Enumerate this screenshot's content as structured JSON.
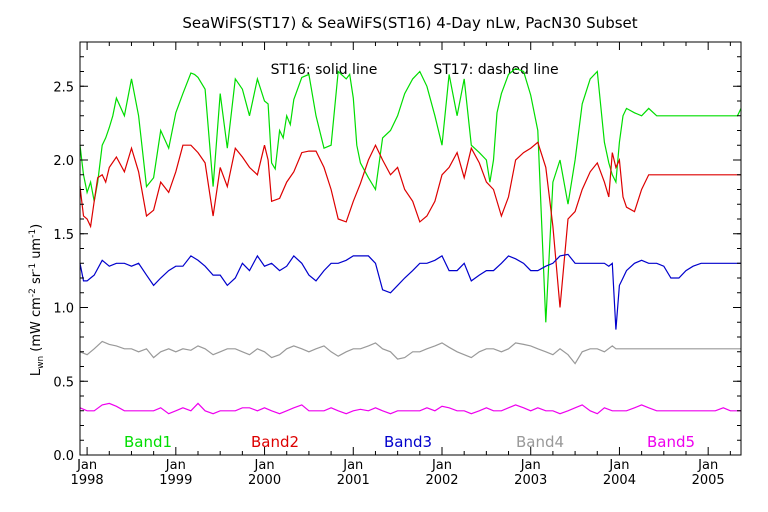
{
  "chart_data": {
    "type": "line",
    "title": "SeaWiFS(ST17) & SeaWiFS(ST16) 4-Day nLw, PacN30 Subset",
    "annotation_left": "ST16: solid line",
    "annotation_right": "ST17: dashed line",
    "ylabel_main": "L",
    "ylabel_sub": "wn",
    "ylabel_units": "(mW cm",
    "ylabel_exp1": "-2",
    "ylabel_mid": " sr",
    "ylabel_exp2": "-1",
    "ylabel_mid2": " um",
    "ylabel_exp3": "-1",
    "ylabel_end": ")",
    "xlabel": "",
    "ylim": [
      0.0,
      2.8
    ],
    "xlim": [
      1997.92,
      2005.37
    ],
    "y_ticks": [
      "0.0",
      "0.5",
      "1.0",
      "1.5",
      "2.0",
      "2.5"
    ],
    "x_ticks": [
      {
        "month": "Jan",
        "year": "1998",
        "x": 1998.0
      },
      {
        "month": "Jan",
        "year": "1999",
        "x": 1999.0
      },
      {
        "month": "Jan",
        "year": "2000",
        "x": 2000.0
      },
      {
        "month": "Jan",
        "year": "2001",
        "x": 2001.0
      },
      {
        "month": "Jan",
        "year": "2002",
        "x": 2002.0
      },
      {
        "month": "Jan",
        "year": "2003",
        "x": 2003.0
      },
      {
        "month": "Jan",
        "year": "2004",
        "x": 2004.0
      },
      {
        "month": "Jan",
        "year": "2005",
        "x": 2005.0
      }
    ],
    "grid": false,
    "legend_position": "bottom",
    "series": [
      {
        "name": "Band1",
        "color": "#00dd00",
        "x": [
          1997.92,
          1997.96,
          1998.0,
          1998.04,
          1998.08,
          1998.12,
          1998.17,
          1998.21,
          1998.25,
          1998.29,
          1998.33,
          1998.42,
          1998.5,
          1998.58,
          1998.67,
          1998.75,
          1998.83,
          1998.92,
          1999.0,
          1999.08,
          1999.17,
          1999.21,
          1999.25,
          1999.33,
          1999.42,
          1999.5,
          1999.58,
          1999.67,
          1999.75,
          1999.83,
          1999.92,
          2000.0,
          2000.04,
          2000.08,
          2000.12,
          2000.17,
          2000.21,
          2000.25,
          2000.29,
          2000.33,
          2000.42,
          2000.5,
          2000.58,
          2000.67,
          2000.75,
          2000.83,
          2000.92,
          2000.96,
          2001.0,
          2001.04,
          2001.08,
          2001.17,
          2001.25,
          2001.33,
          2001.42,
          2001.5,
          2001.58,
          2001.67,
          2001.75,
          2001.83,
          2001.92,
          2002.0,
          2002.08,
          2002.17,
          2002.25,
          2002.33,
          2002.42,
          2002.5,
          2002.54,
          2002.58,
          2002.62,
          2002.67,
          2002.75,
          2002.83,
          2002.92,
          2003.0,
          2003.08,
          2003.17,
          2003.25,
          2003.33,
          2003.42,
          2003.5,
          2003.58,
          2003.67,
          2003.75,
          2003.83,
          2003.88,
          2003.92,
          2003.96,
          2004.0,
          2004.04,
          2004.08,
          2004.17,
          2004.25,
          2004.33,
          2004.42,
          2004.5,
          2004.58,
          2004.67,
          2004.75,
          2004.83,
          2004.92,
          2005.0,
          2005.08,
          2005.17,
          2005.25,
          2005.33,
          2005.37
        ],
        "y": [
          2.1,
          1.9,
          1.78,
          1.85,
          1.72,
          1.85,
          2.1,
          2.15,
          2.22,
          2.3,
          2.42,
          2.3,
          2.55,
          2.3,
          1.82,
          1.88,
          2.2,
          2.08,
          2.32,
          2.45,
          2.59,
          2.58,
          2.56,
          2.48,
          1.82,
          2.45,
          2.08,
          2.55,
          2.48,
          2.3,
          2.55,
          2.4,
          2.38,
          1.98,
          1.94,
          2.2,
          2.15,
          2.3,
          2.24,
          2.41,
          2.56,
          2.58,
          2.3,
          2.08,
          2.1,
          2.6,
          2.55,
          2.58,
          2.42,
          2.1,
          1.98,
          1.88,
          1.8,
          2.15,
          2.2,
          2.3,
          2.45,
          2.55,
          2.6,
          2.5,
          2.3,
          2.1,
          2.58,
          2.3,
          2.55,
          2.1,
          2.05,
          2.0,
          1.85,
          2.0,
          2.32,
          2.45,
          2.58,
          2.62,
          2.6,
          2.44,
          2.2,
          0.9,
          1.85,
          2.0,
          1.7,
          2.0,
          2.38,
          2.55,
          2.6,
          2.12,
          1.98,
          1.9,
          1.85,
          2.12,
          2.3,
          2.35,
          2.32,
          2.3,
          2.35,
          2.3,
          2.3,
          2.3,
          2.3,
          2.3,
          2.3,
          2.3,
          2.3,
          2.3,
          2.3,
          2.3,
          2.3,
          2.35
        ]
      },
      {
        "name": "Band2",
        "color": "#dd0000",
        "x": [
          1997.92,
          1997.96,
          1998.0,
          1998.04,
          1998.08,
          1998.12,
          1998.17,
          1998.21,
          1998.25,
          1998.33,
          1998.42,
          1998.5,
          1998.58,
          1998.67,
          1998.75,
          1998.83,
          1998.92,
          1999.0,
          1999.08,
          1999.17,
          1999.25,
          1999.33,
          1999.42,
          1999.5,
          1999.58,
          1999.67,
          1999.75,
          1999.83,
          1999.92,
          2000.0,
          2000.04,
          2000.08,
          2000.17,
          2000.25,
          2000.33,
          2000.42,
          2000.5,
          2000.58,
          2000.67,
          2000.75,
          2000.83,
          2000.92,
          2001.0,
          2001.08,
          2001.17,
          2001.25,
          2001.33,
          2001.42,
          2001.5,
          2001.58,
          2001.67,
          2001.75,
          2001.83,
          2001.92,
          2002.0,
          2002.08,
          2002.17,
          2002.25,
          2002.33,
          2002.42,
          2002.5,
          2002.58,
          2002.67,
          2002.75,
          2002.83,
          2002.92,
          2003.0,
          2003.08,
          2003.17,
          2003.25,
          2003.33,
          2003.42,
          2003.5,
          2003.58,
          2003.67,
          2003.75,
          2003.83,
          2003.88,
          2003.92,
          2003.96,
          2004.0,
          2004.04,
          2004.08,
          2004.17,
          2004.25,
          2004.33,
          2004.42,
          2004.5,
          2004.58,
          2004.67,
          2004.75,
          2004.83,
          2004.92,
          2005.0,
          2005.08,
          2005.17,
          2005.25,
          2005.33,
          2005.37
        ],
        "y": [
          1.82,
          1.62,
          1.6,
          1.55,
          1.72,
          1.88,
          1.9,
          1.85,
          1.95,
          2.02,
          1.92,
          2.08,
          1.92,
          1.62,
          1.66,
          1.85,
          1.78,
          1.92,
          2.1,
          2.1,
          2.05,
          1.98,
          1.62,
          1.95,
          1.82,
          2.08,
          2.02,
          1.95,
          1.9,
          2.1,
          2.0,
          1.72,
          1.74,
          1.85,
          1.92,
          2.05,
          2.06,
          2.06,
          1.95,
          1.8,
          1.6,
          1.58,
          1.72,
          1.84,
          2.0,
          2.1,
          2.0,
          1.9,
          1.95,
          1.8,
          1.72,
          1.58,
          1.62,
          1.72,
          1.9,
          1.95,
          2.05,
          1.88,
          2.08,
          1.98,
          1.85,
          1.8,
          1.62,
          1.75,
          2.0,
          2.05,
          2.08,
          2.12,
          1.95,
          1.55,
          1.0,
          1.6,
          1.65,
          1.8,
          1.92,
          1.98,
          1.85,
          1.75,
          2.05,
          1.95,
          2.0,
          1.75,
          1.68,
          1.65,
          1.8,
          1.9,
          1.9,
          1.9,
          1.9,
          1.9,
          1.9,
          1.9,
          1.9,
          1.9,
          1.9,
          1.9,
          1.9,
          1.9,
          1.9
        ]
      },
      {
        "name": "Band3",
        "color": "#0000cc",
        "x": [
          1997.92,
          1997.96,
          1998.0,
          1998.04,
          1998.08,
          1998.17,
          1998.25,
          1998.33,
          1998.42,
          1998.5,
          1998.58,
          1998.67,
          1998.75,
          1998.83,
          1998.92,
          1999.0,
          1999.08,
          1999.17,
          1999.25,
          1999.33,
          1999.42,
          1999.5,
          1999.58,
          1999.67,
          1999.75,
          1999.83,
          1999.92,
          2000.0,
          2000.08,
          2000.17,
          2000.25,
          2000.33,
          2000.42,
          2000.5,
          2000.58,
          2000.67,
          2000.75,
          2000.83,
          2000.92,
          2001.0,
          2001.08,
          2001.17,
          2001.25,
          2001.33,
          2001.42,
          2001.5,
          2001.58,
          2001.67,
          2001.75,
          2001.83,
          2001.92,
          2002.0,
          2002.08,
          2002.17,
          2002.25,
          2002.33,
          2002.42,
          2002.5,
          2002.58,
          2002.67,
          2002.75,
          2002.83,
          2002.92,
          2003.0,
          2003.08,
          2003.17,
          2003.25,
          2003.33,
          2003.42,
          2003.5,
          2003.58,
          2003.67,
          2003.75,
          2003.83,
          2003.88,
          2003.92,
          2003.96,
          2004.0,
          2004.04,
          2004.08,
          2004.17,
          2004.25,
          2004.33,
          2004.42,
          2004.5,
          2004.58,
          2004.67,
          2004.75,
          2004.83,
          2004.92,
          2005.0,
          2005.08,
          2005.17,
          2005.25,
          2005.33,
          2005.37
        ],
        "y": [
          1.3,
          1.18,
          1.18,
          1.2,
          1.22,
          1.32,
          1.28,
          1.3,
          1.3,
          1.28,
          1.3,
          1.22,
          1.15,
          1.2,
          1.25,
          1.28,
          1.28,
          1.35,
          1.32,
          1.28,
          1.22,
          1.22,
          1.15,
          1.2,
          1.3,
          1.25,
          1.35,
          1.28,
          1.3,
          1.25,
          1.28,
          1.35,
          1.3,
          1.22,
          1.18,
          1.25,
          1.3,
          1.3,
          1.32,
          1.35,
          1.35,
          1.35,
          1.3,
          1.12,
          1.1,
          1.15,
          1.2,
          1.25,
          1.3,
          1.3,
          1.32,
          1.35,
          1.25,
          1.25,
          1.3,
          1.18,
          1.22,
          1.25,
          1.25,
          1.3,
          1.35,
          1.33,
          1.3,
          1.25,
          1.25,
          1.28,
          1.3,
          1.35,
          1.36,
          1.3,
          1.3,
          1.3,
          1.3,
          1.3,
          1.28,
          1.3,
          0.85,
          1.15,
          1.2,
          1.25,
          1.3,
          1.32,
          1.3,
          1.3,
          1.28,
          1.2,
          1.2,
          1.25,
          1.28,
          1.3,
          1.3,
          1.3,
          1.3,
          1.3,
          1.3,
          1.3
        ]
      },
      {
        "name": "Band4",
        "color": "#999999",
        "x": [
          1997.92,
          1998.0,
          1998.08,
          1998.17,
          1998.25,
          1998.33,
          1998.42,
          1998.5,
          1998.58,
          1998.67,
          1998.75,
          1998.83,
          1998.92,
          1999.0,
          1999.08,
          1999.17,
          1999.25,
          1999.33,
          1999.42,
          1999.5,
          1999.58,
          1999.67,
          1999.75,
          1999.83,
          1999.92,
          2000.0,
          2000.08,
          2000.17,
          2000.25,
          2000.33,
          2000.42,
          2000.5,
          2000.58,
          2000.67,
          2000.75,
          2000.83,
          2000.92,
          2001.0,
          2001.08,
          2001.17,
          2001.25,
          2001.33,
          2001.42,
          2001.5,
          2001.58,
          2001.67,
          2001.75,
          2001.83,
          2001.92,
          2002.0,
          2002.08,
          2002.17,
          2002.25,
          2002.33,
          2002.42,
          2002.5,
          2002.58,
          2002.67,
          2002.75,
          2002.83,
          2002.92,
          2003.0,
          2003.08,
          2003.17,
          2003.25,
          2003.33,
          2003.42,
          2003.5,
          2003.58,
          2003.67,
          2003.75,
          2003.83,
          2003.92,
          2003.96,
          2004.0,
          2004.04,
          2004.08,
          2004.17,
          2004.25,
          2004.33,
          2004.42,
          2004.5,
          2004.58,
          2004.67,
          2004.75,
          2004.83,
          2004.92,
          2005.0,
          2005.08,
          2005.17,
          2005.25,
          2005.33,
          2005.37
        ],
        "y": [
          0.7,
          0.68,
          0.72,
          0.77,
          0.75,
          0.74,
          0.72,
          0.72,
          0.7,
          0.72,
          0.66,
          0.7,
          0.72,
          0.7,
          0.72,
          0.71,
          0.74,
          0.72,
          0.68,
          0.7,
          0.72,
          0.72,
          0.7,
          0.68,
          0.72,
          0.7,
          0.66,
          0.68,
          0.72,
          0.74,
          0.72,
          0.7,
          0.72,
          0.74,
          0.7,
          0.67,
          0.7,
          0.72,
          0.72,
          0.74,
          0.76,
          0.72,
          0.7,
          0.65,
          0.66,
          0.7,
          0.7,
          0.72,
          0.74,
          0.76,
          0.73,
          0.7,
          0.68,
          0.66,
          0.7,
          0.72,
          0.72,
          0.7,
          0.72,
          0.76,
          0.75,
          0.74,
          0.72,
          0.7,
          0.68,
          0.72,
          0.68,
          0.62,
          0.7,
          0.72,
          0.72,
          0.7,
          0.74,
          0.72,
          0.72,
          0.72,
          0.72,
          0.72,
          0.72,
          0.72,
          0.72,
          0.72,
          0.72,
          0.72,
          0.72,
          0.72,
          0.72,
          0.72,
          0.72,
          0.72,
          0.72,
          0.72,
          0.72
        ]
      },
      {
        "name": "Band5",
        "color": "#ee00ee",
        "x": [
          1997.92,
          1998.0,
          1998.08,
          1998.17,
          1998.25,
          1998.33,
          1998.42,
          1998.5,
          1998.58,
          1998.67,
          1998.75,
          1998.83,
          1998.92,
          1999.0,
          1999.08,
          1999.17,
          1999.25,
          1999.33,
          1999.42,
          1999.5,
          1999.58,
          1999.67,
          1999.75,
          1999.83,
          1999.92,
          2000.0,
          2000.08,
          2000.17,
          2000.25,
          2000.33,
          2000.42,
          2000.5,
          2000.58,
          2000.67,
          2000.75,
          2000.83,
          2000.92,
          2001.0,
          2001.08,
          2001.17,
          2001.25,
          2001.33,
          2001.42,
          2001.5,
          2001.58,
          2001.67,
          2001.75,
          2001.83,
          2001.92,
          2002.0,
          2002.08,
          2002.17,
          2002.25,
          2002.33,
          2002.42,
          2002.5,
          2002.58,
          2002.67,
          2002.75,
          2002.83,
          2002.92,
          2003.0,
          2003.08,
          2003.17,
          2003.25,
          2003.33,
          2003.42,
          2003.5,
          2003.58,
          2003.67,
          2003.75,
          2003.83,
          2003.92,
          2004.0,
          2004.08,
          2004.17,
          2004.25,
          2004.33,
          2004.42,
          2004.5,
          2004.58,
          2004.67,
          2004.75,
          2004.83,
          2004.92,
          2005.0,
          2005.08,
          2005.17,
          2005.25,
          2005.33,
          2005.37
        ],
        "y": [
          0.32,
          0.3,
          0.3,
          0.34,
          0.35,
          0.33,
          0.3,
          0.3,
          0.3,
          0.3,
          0.3,
          0.32,
          0.28,
          0.3,
          0.32,
          0.3,
          0.35,
          0.3,
          0.28,
          0.3,
          0.3,
          0.3,
          0.32,
          0.32,
          0.3,
          0.32,
          0.3,
          0.28,
          0.3,
          0.32,
          0.34,
          0.3,
          0.3,
          0.3,
          0.32,
          0.3,
          0.28,
          0.3,
          0.31,
          0.3,
          0.32,
          0.3,
          0.28,
          0.3,
          0.3,
          0.3,
          0.3,
          0.32,
          0.3,
          0.33,
          0.32,
          0.3,
          0.3,
          0.28,
          0.3,
          0.32,
          0.3,
          0.3,
          0.32,
          0.34,
          0.32,
          0.3,
          0.32,
          0.3,
          0.3,
          0.28,
          0.3,
          0.32,
          0.34,
          0.3,
          0.28,
          0.32,
          0.3,
          0.3,
          0.3,
          0.32,
          0.34,
          0.32,
          0.3,
          0.3,
          0.3,
          0.3,
          0.3,
          0.3,
          0.3,
          0.3,
          0.3,
          0.32,
          0.3,
          0.3,
          0.3
        ]
      }
    ]
  }
}
